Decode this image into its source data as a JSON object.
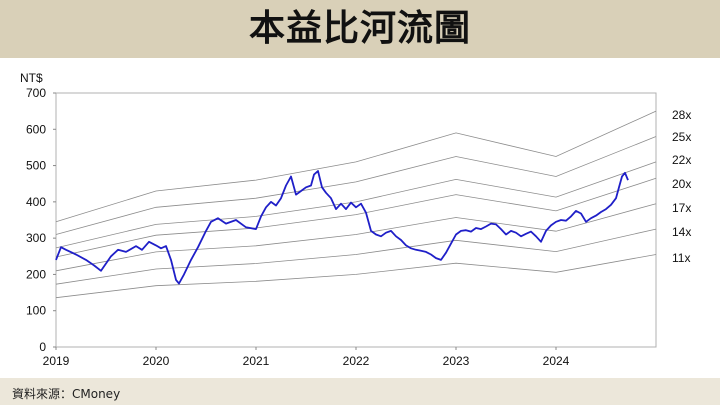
{
  "title": "本益比河流圖",
  "source": "資料來源：CMoney",
  "chart_data": {
    "type": "line",
    "title": "本益比河流圖",
    "ylabel": "NT$",
    "xlabel": "",
    "ylim": [
      0,
      700
    ],
    "xlim": [
      2019,
      2025
    ],
    "grid": false,
    "y_ticks": [
      "0",
      "100",
      "200",
      "300",
      "400",
      "500",
      "600",
      "700"
    ],
    "x_ticks": [
      {
        "x": 2019,
        "label": "2019"
      },
      {
        "x": 2020,
        "label": "2020"
      },
      {
        "x": 2021,
        "label": "2021"
      },
      {
        "x": 2022,
        "label": "2022"
      },
      {
        "x": 2023,
        "label": "2023"
      },
      {
        "x": 2024,
        "label": "2024"
      }
    ],
    "band_x": [
      2019.0,
      2020.0,
      2021.0,
      2022.0,
      2023.0,
      2024.0,
      2025.0
    ],
    "bands": [
      {
        "name": "28x",
        "values": [
          345,
          430,
          460,
          510,
          590,
          525,
          650
        ]
      },
      {
        "name": "25x",
        "values": [
          310,
          385,
          410,
          455,
          525,
          470,
          580
        ]
      },
      {
        "name": "22x",
        "values": [
          273,
          338,
          360,
          400,
          462,
          413,
          510
        ]
      },
      {
        "name": "20x",
        "values": [
          248,
          308,
          328,
          365,
          420,
          375,
          465
        ]
      },
      {
        "name": "17x",
        "values": [
          210,
          262,
          279,
          310,
          357,
          319,
          395
        ]
      },
      {
        "name": "14x",
        "values": [
          173,
          215,
          230,
          255,
          294,
          263,
          325
        ]
      },
      {
        "name": "11x",
        "values": [
          136,
          169,
          181,
          200,
          231,
          206,
          255
        ]
      }
    ],
    "series": [
      {
        "name": "",
        "color": "#1f1fc8",
        "x": [
          2019.0,
          2019.05,
          2019.1,
          2019.2,
          2019.3,
          2019.38,
          2019.45,
          2019.55,
          2019.62,
          2019.7,
          2019.8,
          2019.86,
          2019.93,
          2020.0,
          2020.05,
          2020.1,
          2020.15,
          2020.2,
          2020.23,
          2020.28,
          2020.35,
          2020.42,
          2020.5,
          2020.55,
          2020.62,
          2020.7,
          2020.8,
          2020.9,
          2021.0,
          2021.05,
          2021.1,
          2021.15,
          2021.2,
          2021.25,
          2021.3,
          2021.35,
          2021.4,
          2021.45,
          2021.5,
          2021.55,
          2021.58,
          2021.62,
          2021.66,
          2021.7,
          2021.75,
          2021.8,
          2021.85,
          2021.9,
          2021.95,
          2022.0,
          2022.05,
          2022.1,
          2022.15,
          2022.2,
          2022.25,
          2022.3,
          2022.35,
          2022.4,
          2022.45,
          2022.5,
          2022.55,
          2022.6,
          2022.65,
          2022.7,
          2022.75,
          2022.8,
          2022.85,
          2022.9,
          2022.95,
          2023.0,
          2023.05,
          2023.1,
          2023.15,
          2023.2,
          2023.25,
          2023.3,
          2023.35,
          2023.4,
          2023.45,
          2023.5,
          2023.55,
          2023.6,
          2023.65,
          2023.7,
          2023.75,
          2023.8,
          2023.85,
          2023.9,
          2023.95,
          2024.0,
          2024.05,
          2024.1,
          2024.15,
          2024.2,
          2024.25,
          2024.3,
          2024.35,
          2024.4,
          2024.45,
          2024.5,
          2024.55,
          2024.6,
          2024.63,
          2024.66,
          2024.69,
          2024.72
        ],
        "values": [
          240,
          275,
          268,
          255,
          240,
          225,
          210,
          250,
          268,
          262,
          278,
          268,
          290,
          280,
          272,
          278,
          240,
          185,
          175,
          200,
          240,
          275,
          320,
          345,
          355,
          340,
          350,
          330,
          325,
          360,
          385,
          400,
          390,
          410,
          445,
          470,
          420,
          430,
          440,
          445,
          475,
          485,
          440,
          425,
          410,
          380,
          395,
          380,
          398,
          385,
          395,
          370,
          320,
          310,
          305,
          315,
          320,
          305,
          295,
          280,
          272,
          268,
          265,
          262,
          255,
          245,
          240,
          260,
          285,
          310,
          320,
          322,
          318,
          328,
          325,
          332,
          340,
          338,
          325,
          310,
          320,
          315,
          305,
          312,
          318,
          305,
          290,
          320,
          335,
          345,
          350,
          348,
          360,
          375,
          368,
          345,
          355,
          362,
          372,
          380,
          392,
          410,
          440,
          470,
          480,
          460
        ]
      }
    ]
  }
}
